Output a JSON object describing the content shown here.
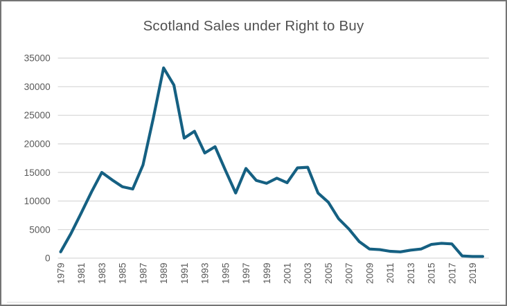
{
  "window": {
    "background": "#ffffff",
    "border_color": "#747474"
  },
  "chart_data": {
    "type": "line",
    "title": "Scotland Sales under Right to Buy",
    "x": [
      1979,
      1980,
      1981,
      1982,
      1983,
      1984,
      1985,
      1986,
      1987,
      1988,
      1989,
      1990,
      1991,
      1992,
      1993,
      1994,
      1995,
      1996,
      1997,
      1998,
      1999,
      2000,
      2001,
      2002,
      2003,
      2004,
      2005,
      2006,
      2007,
      2008,
      2009,
      2010,
      2011,
      2012,
      2013,
      2014,
      2015,
      2016,
      2017,
      2018,
      2019,
      2020
    ],
    "values": [
      1100,
      4300,
      7900,
      11600,
      15000,
      13700,
      12500,
      12100,
      16300,
      24500,
      33300,
      30300,
      21000,
      22200,
      18400,
      19500,
      15400,
      11400,
      15700,
      13600,
      13100,
      14000,
      13200,
      15800,
      15900,
      11400,
      9800,
      6900,
      5100,
      2900,
      1600,
      1500,
      1200,
      1100,
      1400,
      1600,
      2400,
      2600,
      2500,
      400,
      300,
      300
    ],
    "xlabel": "",
    "ylabel": "",
    "ylim": [
      0,
      35000
    ],
    "yticks": [
      0,
      5000,
      10000,
      15000,
      20000,
      25000,
      30000,
      35000
    ],
    "xtick_labels": [
      "1979",
      "1981",
      "1983",
      "1985",
      "1987",
      "1989",
      "1991",
      "1993",
      "1995",
      "1997",
      "1999",
      "2001",
      "2003",
      "2005",
      "2007",
      "2009",
      "2011",
      "2013",
      "2015",
      "2017",
      "2019"
    ],
    "xtick_label_rotation": -90,
    "grid": "horizontal",
    "legend_position": "none",
    "line_color": "#156082",
    "gridline_color": "#d9d9d9",
    "axis_label_color": "#595959",
    "title_color": "#505050"
  }
}
